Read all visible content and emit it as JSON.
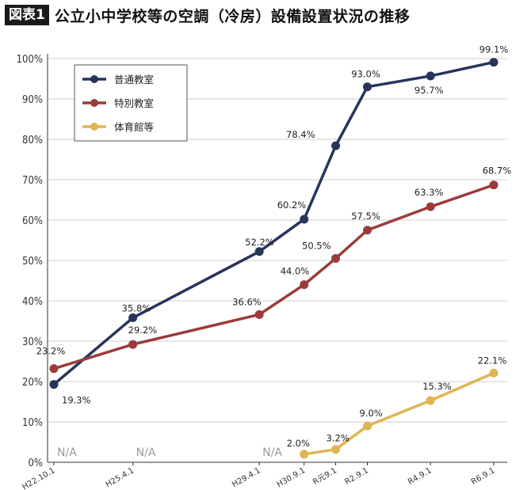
{
  "header": {
    "badge": "図表1",
    "title": "公立小中学校等の空調（冷房）設備設置状況の推移"
  },
  "colors": {
    "series": [
      "#27345c",
      "#9b3b3b",
      "#e0b551"
    ],
    "grid": "#cfcfcf",
    "axis": "#333333"
  },
  "chart_data": {
    "type": "line",
    "categories": [
      "H22.10.1",
      "H25.4.1",
      "H29.4.1",
      "H30.9.1",
      "R元9.1",
      "R2.9.1",
      "R4.9.1",
      "R6.9.1"
    ],
    "x_dates": [
      "2010-10-01",
      "2013-04-01",
      "2017-04-01",
      "2018-09-01",
      "2019-09-01",
      "2020-09-01",
      "2022-09-01",
      "2024-09-01"
    ],
    "yticks": [
      "0%",
      "10%",
      "20%",
      "30%",
      "40%",
      "50%",
      "60%",
      "70%",
      "80%",
      "90%",
      "100%"
    ],
    "ylim": [
      0,
      100
    ],
    "grid": true,
    "legend_position": "top-left",
    "na_label": "N/A",
    "series": [
      {
        "name": "普通教室",
        "points": [
          {
            "x": "2010-10-01",
            "y": 19.3,
            "label": "19.3%"
          },
          {
            "x": "2013-04-01",
            "y": 35.8,
            "label": "35.8%"
          },
          {
            "x": "2017-04-01",
            "y": 52.2,
            "label": "52.2%"
          },
          {
            "x": "2018-09-01",
            "y": 60.2,
            "label": "60.2%"
          },
          {
            "x": "2019-09-01",
            "y": 78.4,
            "label": "78.4%"
          },
          {
            "x": "2020-09-01",
            "y": 93.0,
            "label": "93.0%"
          },
          {
            "x": "2022-09-01",
            "y": 95.7,
            "label": "95.7%"
          },
          {
            "x": "2024-09-01",
            "y": 99.1,
            "label": "99.1%"
          }
        ]
      },
      {
        "name": "特別教室",
        "points": [
          {
            "x": "2010-10-01",
            "y": 23.2,
            "label": "23.2%"
          },
          {
            "x": "2013-04-01",
            "y": 29.2,
            "label": "29.2%"
          },
          {
            "x": "2017-04-01",
            "y": 36.6,
            "label": "36.6%"
          },
          {
            "x": "2018-09-01",
            "y": 44.0,
            "label": "44.0%"
          },
          {
            "x": "2019-09-01",
            "y": 50.5,
            "label": "50.5%"
          },
          {
            "x": "2020-09-01",
            "y": 57.5,
            "label": "57.5%"
          },
          {
            "x": "2022-09-01",
            "y": 63.3,
            "label": "63.3%"
          },
          {
            "x": "2024-09-01",
            "y": 68.7,
            "label": "68.7%"
          }
        ]
      },
      {
        "name": "体育館等",
        "na_at": [
          "2010-10-01",
          "2013-04-01",
          "2017-04-01"
        ],
        "points": [
          {
            "x": "2018-09-01",
            "y": 2.0,
            "label": "2.0%"
          },
          {
            "x": "2019-09-01",
            "y": 3.2,
            "label": "3.2%"
          },
          {
            "x": "2020-09-01",
            "y": 9.0,
            "label": "9.0%"
          },
          {
            "x": "2022-09-01",
            "y": 15.3,
            "label": "15.3%"
          },
          {
            "x": "2024-09-01",
            "y": 22.1,
            "label": "22.1%"
          }
        ]
      }
    ]
  }
}
